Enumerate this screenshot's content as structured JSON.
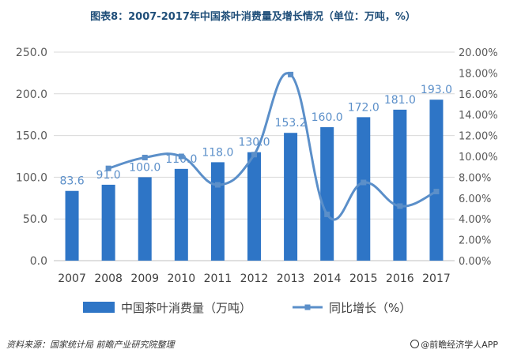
{
  "title": "图表8：2007-2017年中国茶叶消费量及增长情况（单位：万吨，%）",
  "source_note": "资料来源：国家统计局 前瞻产业研究院整理",
  "brand_note": "@前瞻经济学人APP",
  "colors": {
    "bar": "#2e75c6",
    "line": "#5b8fc9",
    "label": "#5b8fc9",
    "axis": "#595959",
    "grid": "#d9d9d9"
  },
  "chart_data": {
    "type": "bar",
    "categories": [
      "2007",
      "2008",
      "2009",
      "2010",
      "2011",
      "2012",
      "2013",
      "2014",
      "2015",
      "2016",
      "2017"
    ],
    "series": [
      {
        "name": "中国茶叶消费量（万吨）",
        "type": "bar",
        "axis": "left",
        "values": [
          83.6,
          91.0,
          100.0,
          110.0,
          118.0,
          130.0,
          153.2,
          160.0,
          172.0,
          181.0,
          193.0
        ],
        "labels": [
          "83.6",
          "91.0",
          "100.0",
          "110.0",
          "118.0",
          "130.0",
          "153.2",
          "160.0",
          "172.0",
          "181.0",
          "193.0"
        ]
      },
      {
        "name": "同比增长（%）",
        "type": "line",
        "smooth": true,
        "axis": "right",
        "values": [
          null,
          8.85,
          9.89,
          10.0,
          7.27,
          10.17,
          17.85,
          4.44,
          7.5,
          5.23,
          6.63
        ]
      }
    ],
    "ylim_left": [
      0,
      250
    ],
    "yticks_left": [
      "0.0",
      "50.0",
      "100.0",
      "150.0",
      "200.0",
      "250.0"
    ],
    "ylim_right": [
      0,
      20
    ],
    "yticks_right": [
      "0.00%",
      "2.00%",
      "4.00%",
      "6.00%",
      "8.00%",
      "10.00%",
      "12.00%",
      "14.00%",
      "16.00%",
      "18.00%",
      "20.00%"
    ],
    "grid": true,
    "legend_position": "bottom"
  }
}
